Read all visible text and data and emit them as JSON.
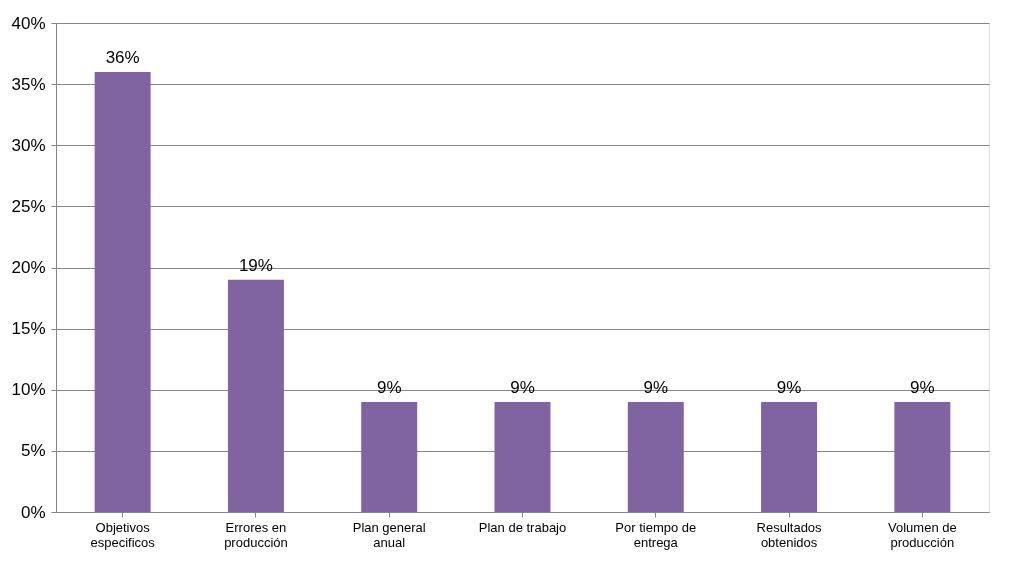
{
  "chart_data": {
    "type": "bar",
    "categories": [
      "Objetivos especificos",
      "Errores en producción",
      "Plan general anual",
      "Plan de trabajo",
      "Por tiempo de entrega",
      "Resultados obtenidos",
      "Volumen de producción"
    ],
    "values": [
      36,
      19,
      9,
      9,
      9,
      9,
      9
    ],
    "value_labels": [
      "36%",
      "19%",
      "9%",
      "9%",
      "9%",
      "9%",
      "9%"
    ],
    "color": "#8064a2",
    "ylim": [
      0,
      40
    ],
    "yticks": [
      {
        "value": 0,
        "label": "0%"
      },
      {
        "value": 5,
        "label": "5%"
      },
      {
        "value": 10,
        "label": "10%"
      },
      {
        "value": 15,
        "label": "15%"
      },
      {
        "value": 20,
        "label": "20%"
      },
      {
        "value": 25,
        "label": "25%"
      },
      {
        "value": 30,
        "label": "30%"
      },
      {
        "value": 35,
        "label": "35%"
      },
      {
        "value": 40,
        "label": "40%"
      }
    ],
    "grid": "y"
  }
}
